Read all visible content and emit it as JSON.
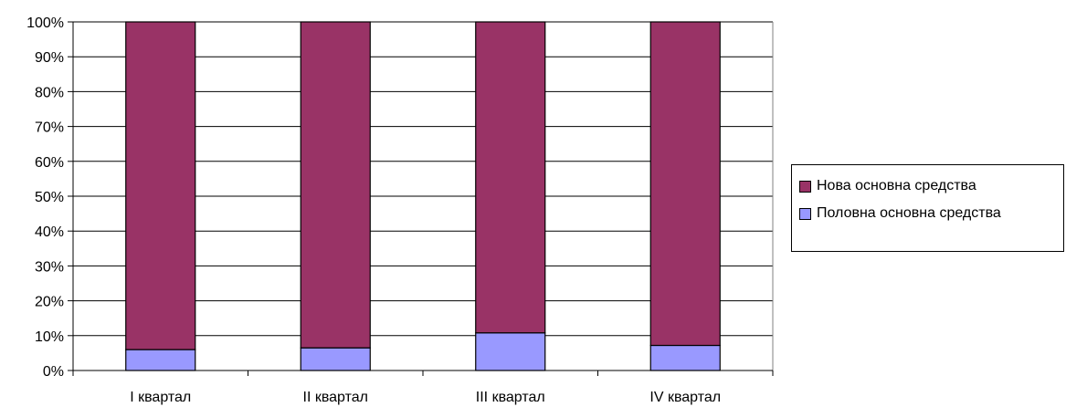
{
  "chart_data": {
    "type": "bar",
    "stacked": true,
    "percent_stacked": true,
    "categories": [
      "I квартал",
      "II квартал",
      "III квартал",
      "IV квартал"
    ],
    "series": [
      {
        "name": "Половна основна средства",
        "color": "#9999ff",
        "values": [
          6,
          6.5,
          10.8,
          7.2
        ]
      },
      {
        "name": "Нова основна средства",
        "color": "#993366",
        "values": [
          94,
          93.5,
          89.2,
          92.8
        ]
      }
    ],
    "y_ticks": [
      "0%",
      "10%",
      "20%",
      "30%",
      "40%",
      "50%",
      "60%",
      "70%",
      "80%",
      "90%",
      "100%"
    ],
    "ylim": [
      0,
      100
    ],
    "grid": true,
    "legend_position": "right",
    "legend_order": [
      1,
      0
    ]
  }
}
